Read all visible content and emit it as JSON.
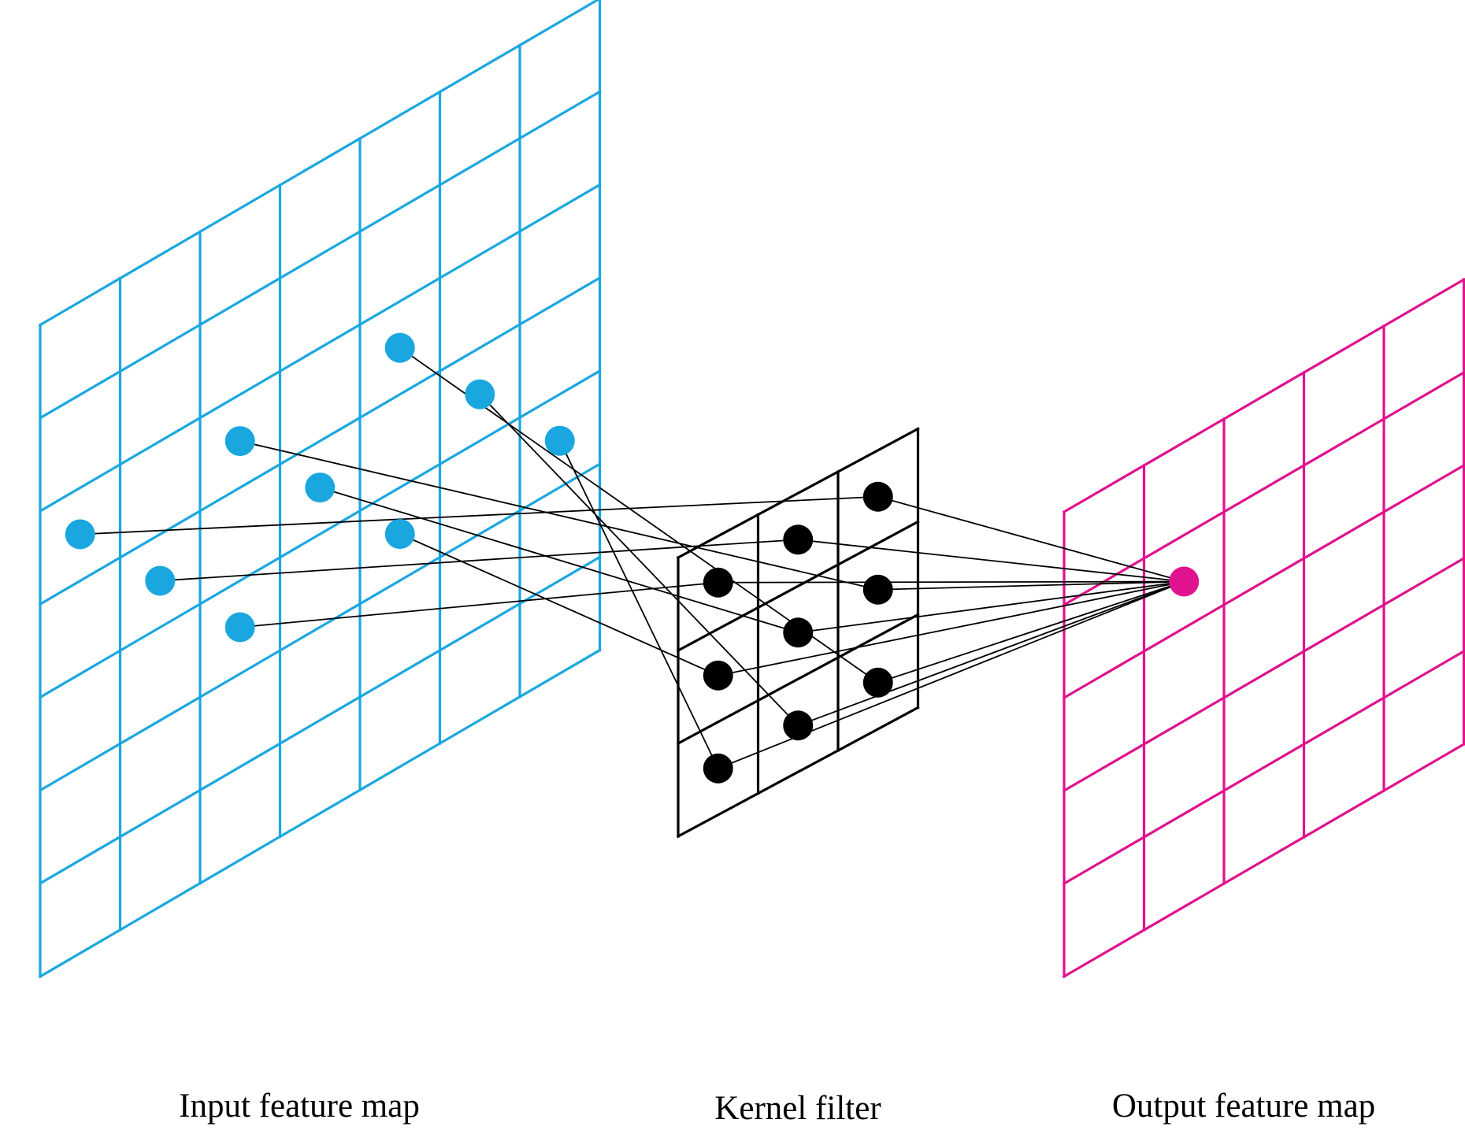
{
  "labels": {
    "input": "Input feature map",
    "kernel": "Kernel filter",
    "output": "Output feature map"
  },
  "colors": {
    "input": "#1aa7e0",
    "kernel": "#000000",
    "output": "#e0128e",
    "connector": "#000000"
  },
  "grids": {
    "input": {
      "rows": 7,
      "cols": 7
    },
    "kernel": {
      "rows": 3,
      "cols": 3
    },
    "output": {
      "rows": 5,
      "cols": 5
    }
  },
  "connections": {
    "input_to_kernel": [
      {
        "input_cell": [
          6,
          2
        ],
        "kernel_cell": [
          0,
          0
        ]
      },
      {
        "input_cell": [
          4,
          2
        ],
        "kernel_cell": [
          0,
          1
        ]
      },
      {
        "input_cell": [
          2,
          2
        ],
        "kernel_cell": [
          0,
          2
        ]
      },
      {
        "input_cell": [
          5,
          3
        ],
        "kernel_cell": [
          1,
          0
        ]
      },
      {
        "input_cell": [
          3,
          3
        ],
        "kernel_cell": [
          1,
          1
        ]
      },
      {
        "input_cell": [
          1,
          3
        ],
        "kernel_cell": [
          1,
          2
        ]
      },
      {
        "input_cell": [
          4,
          4
        ],
        "kernel_cell": [
          2,
          0
        ]
      },
      {
        "input_cell": [
          2,
          4
        ],
        "kernel_cell": [
          2,
          1
        ]
      },
      {
        "input_cell": [
          0,
          4
        ],
        "kernel_cell": [
          2,
          2
        ]
      }
    ],
    "kernel_to_output": {
      "output_cell": [
        1,
        3
      ]
    }
  }
}
